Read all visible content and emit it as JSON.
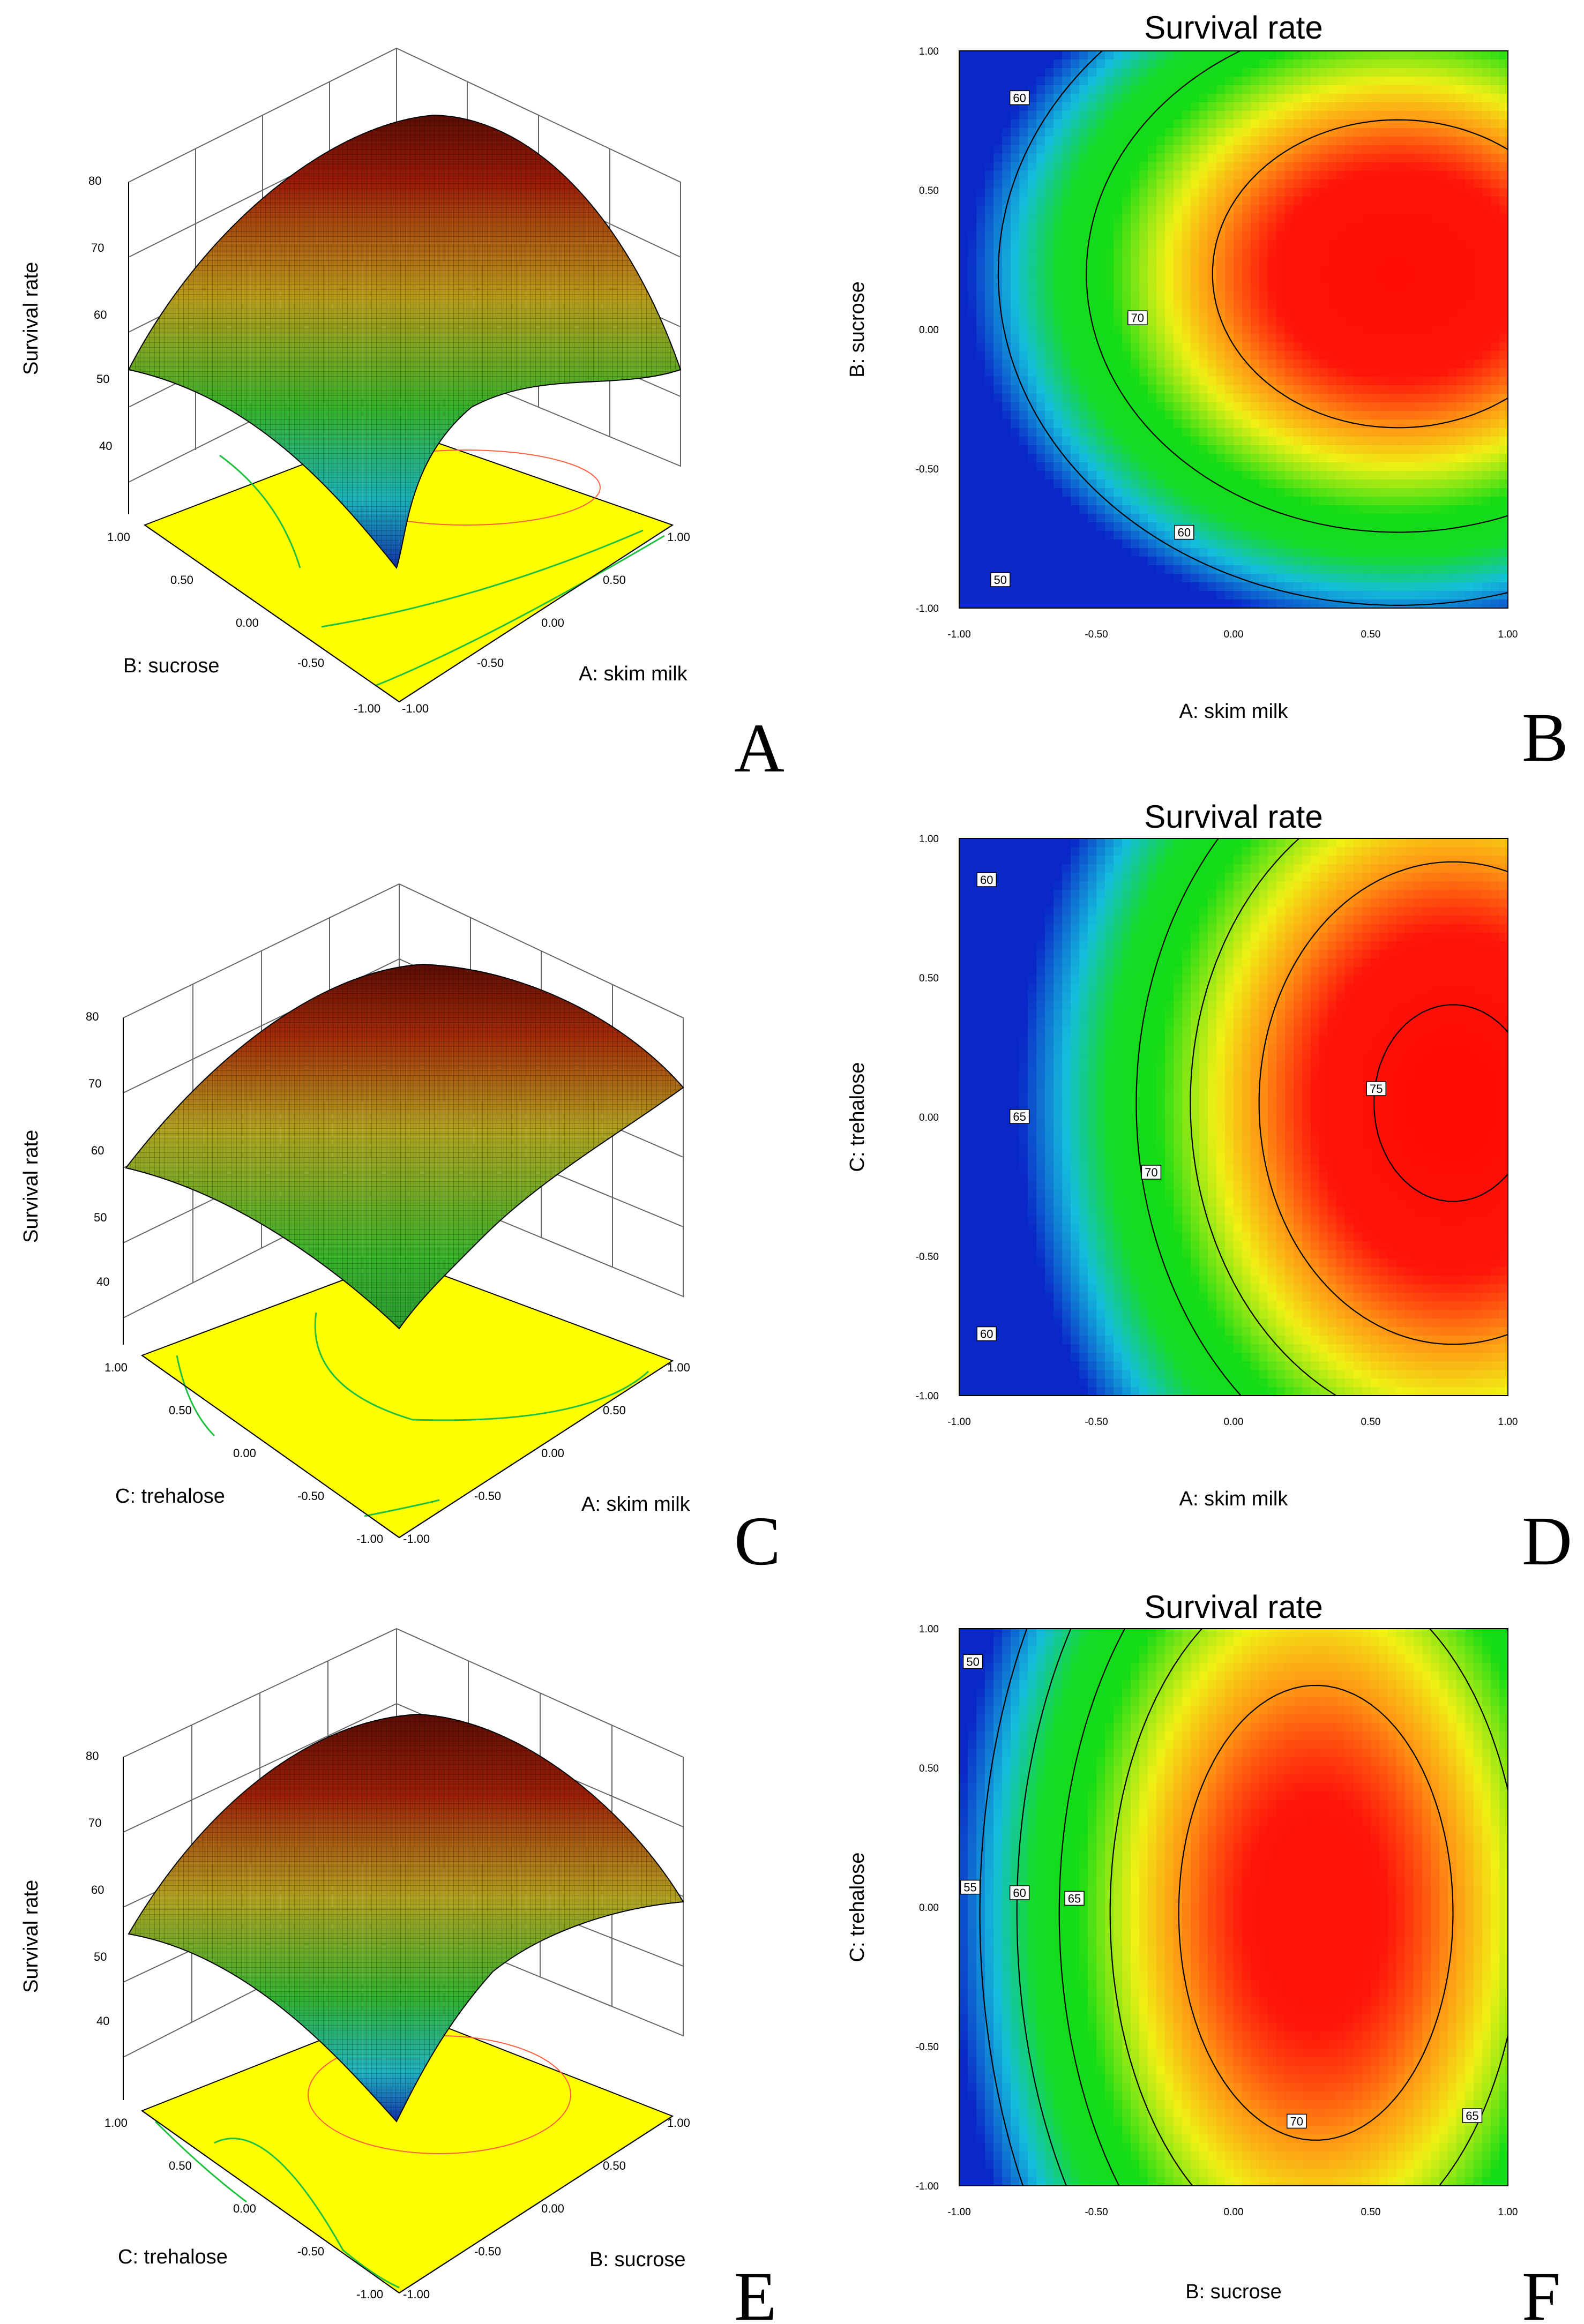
{
  "figure_letters": [
    "A",
    "B",
    "C",
    "D",
    "E",
    "F"
  ],
  "chart_data": [
    {
      "panel": "A",
      "type": "surface3d",
      "xlabel": "A: skim milk",
      "ylabel": "B: sucrose",
      "zlabel": "Survival rate",
      "xrange": [
        -1,
        1
      ],
      "yrange": [
        -1,
        1
      ],
      "zrange": [
        40,
        80
      ],
      "xticks": [
        "-1.00",
        "-0.50",
        "0.00",
        "0.50",
        "1.00"
      ],
      "yticks": [
        "-1.00",
        "-0.50",
        "0.00",
        "0.50",
        "1.00"
      ],
      "zticks": [
        "40",
        "50",
        "60",
        "70",
        "80"
      ],
      "corner_values": {
        "a_low_b_low": 50,
        "a_high_b_high": 74,
        "a_low_b_high": 51,
        "a_high_b_low": 53
      },
      "max": 76,
      "colors": {
        "high": "#8a1a0a",
        "mid": "#b8b820",
        "low_green": "#2ab02a",
        "low_blue": "#1a40c0",
        "floor": "#ffff00"
      }
    },
    {
      "panel": "B",
      "type": "contour",
      "title": "Survival rate",
      "xlabel": "A: skim milk",
      "ylabel": "B: sucrose",
      "xrange": [
        -1,
        1
      ],
      "yrange": [
        -1,
        1
      ],
      "xticks": [
        "-1.00",
        "-0.50",
        "0.00",
        "0.50",
        "1.00"
      ],
      "yticks": [
        "-1.00",
        "-0.50",
        "0.00",
        "0.50",
        "1.00"
      ],
      "contour_labels": [
        {
          "text": "60",
          "x": -0.78,
          "y": 0.83
        },
        {
          "text": "70",
          "x": -0.35,
          "y": 0.04
        },
        {
          "text": "60",
          "x": -0.18,
          "y": -0.73
        },
        {
          "text": "50",
          "x": -0.85,
          "y": -0.9
        }
      ]
    },
    {
      "panel": "C",
      "type": "surface3d",
      "xlabel": "A: skim milk",
      "ylabel": "C: trehalose",
      "zlabel": "Survival rate",
      "xrange": [
        -1,
        1
      ],
      "yrange": [
        -1,
        1
      ],
      "zrange": [
        40,
        80
      ],
      "xticks": [
        "-1.00",
        "-0.50",
        "0.00",
        "0.50",
        "1.00"
      ],
      "yticks": [
        "-1.00",
        "-0.50",
        "0.00",
        "0.50",
        "1.00"
      ],
      "zticks": [
        "40",
        "50",
        "60",
        "70",
        "80"
      ],
      "max": 76
    },
    {
      "panel": "D",
      "type": "contour",
      "title": "Survival rate",
      "xlabel": "A: skim milk",
      "ylabel": "C: trehalose",
      "xrange": [
        -1,
        1
      ],
      "yrange": [
        -1,
        1
      ],
      "xticks": [
        "-1.00",
        "-0.50",
        "0.00",
        "0.50",
        "1.00"
      ],
      "yticks": [
        "-1.00",
        "-0.50",
        "0.00",
        "0.50",
        "1.00"
      ],
      "contour_labels": [
        {
          "text": "60",
          "x": -0.9,
          "y": 0.85
        },
        {
          "text": "65",
          "x": -0.78,
          "y": 0.0
        },
        {
          "text": "70",
          "x": -0.3,
          "y": -0.2
        },
        {
          "text": "75",
          "x": 0.52,
          "y": 0.1
        },
        {
          "text": "60",
          "x": -0.9,
          "y": -0.78
        }
      ]
    },
    {
      "panel": "E",
      "type": "surface3d",
      "xlabel": "B: sucrose",
      "ylabel": "C: trehalose",
      "zlabel": "Survival rate",
      "xrange": [
        -1,
        1
      ],
      "yrange": [
        -1,
        1
      ],
      "zrange": [
        40,
        80
      ],
      "xticks": [
        "-1.00",
        "-0.50",
        "0.00",
        "0.50",
        "1.00"
      ],
      "yticks": [
        "-1.00",
        "-0.50",
        "0.00",
        "0.50",
        "1.00"
      ],
      "zticks": [
        "40",
        "50",
        "60",
        "70",
        "80"
      ],
      "max": 76
    },
    {
      "panel": "F",
      "type": "contour",
      "title": "Survival rate",
      "xlabel": "B: sucrose",
      "ylabel": "C: trehalose",
      "xrange": [
        -1,
        1
      ],
      "yrange": [
        -1,
        1
      ],
      "xticks": [
        "-1.00",
        "-0.50",
        "0.00",
        "0.50",
        "1.00"
      ],
      "yticks": [
        "-1.00",
        "-0.50",
        "0.00",
        "0.50",
        "1.00"
      ],
      "contour_labels": [
        {
          "text": "50",
          "x": -0.95,
          "y": 0.88
        },
        {
          "text": "55",
          "x": -0.96,
          "y": 0.07
        },
        {
          "text": "60",
          "x": -0.78,
          "y": 0.05
        },
        {
          "text": "65",
          "x": -0.58,
          "y": 0.03
        },
        {
          "text": "70",
          "x": 0.23,
          "y": -0.77
        },
        {
          "text": "65",
          "x": 0.87,
          "y": -0.75
        }
      ]
    }
  ]
}
